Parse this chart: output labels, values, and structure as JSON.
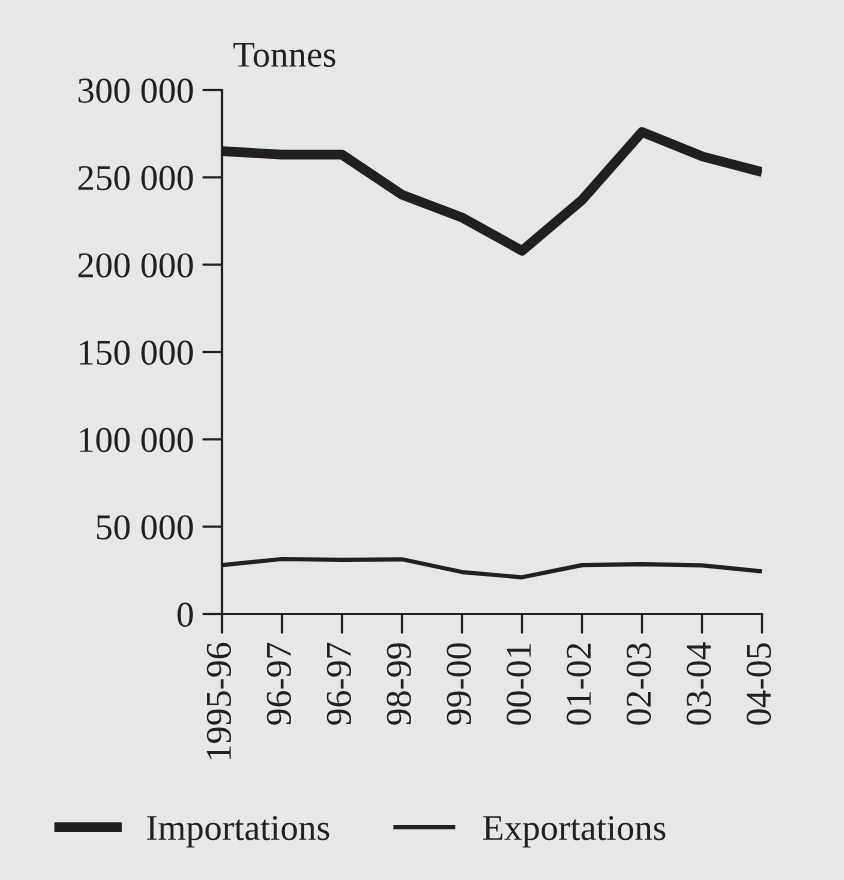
{
  "chart_data": {
    "type": "line",
    "ylabel": "Tonnes",
    "categories": [
      "1995-96",
      "96-97",
      "96-97",
      "98-99",
      "99-00",
      "00-01",
      "01-02",
      "02-03",
      "03-04",
      "04-05"
    ],
    "series": [
      {
        "name": "Importations",
        "color": "#231f20",
        "values": [
          265000,
          263000,
          263000,
          240000,
          227000,
          208000,
          237000,
          276000,
          262000,
          253000
        ]
      },
      {
        "name": "Exportations",
        "color": "#231f20",
        "values": [
          28000,
          31500,
          31000,
          31300,
          24000,
          21000,
          28000,
          28600,
          27800,
          24400
        ]
      }
    ],
    "ylim": [
      0,
      300000
    ],
    "yticks": [
      0,
      {
        "value": 50000,
        "label": "50 000"
      },
      {
        "value": 100000,
        "label": "100 000"
      },
      {
        "value": 150000,
        "label": "150 000"
      },
      {
        "value": 200000,
        "label": "200 000"
      },
      {
        "value": 250000,
        "label": "250 000"
      },
      {
        "value": 300000,
        "label": "300 000"
      }
    ],
    "grid": false,
    "legend": "bottom",
    "marker": "none",
    "line_style": "solid"
  }
}
